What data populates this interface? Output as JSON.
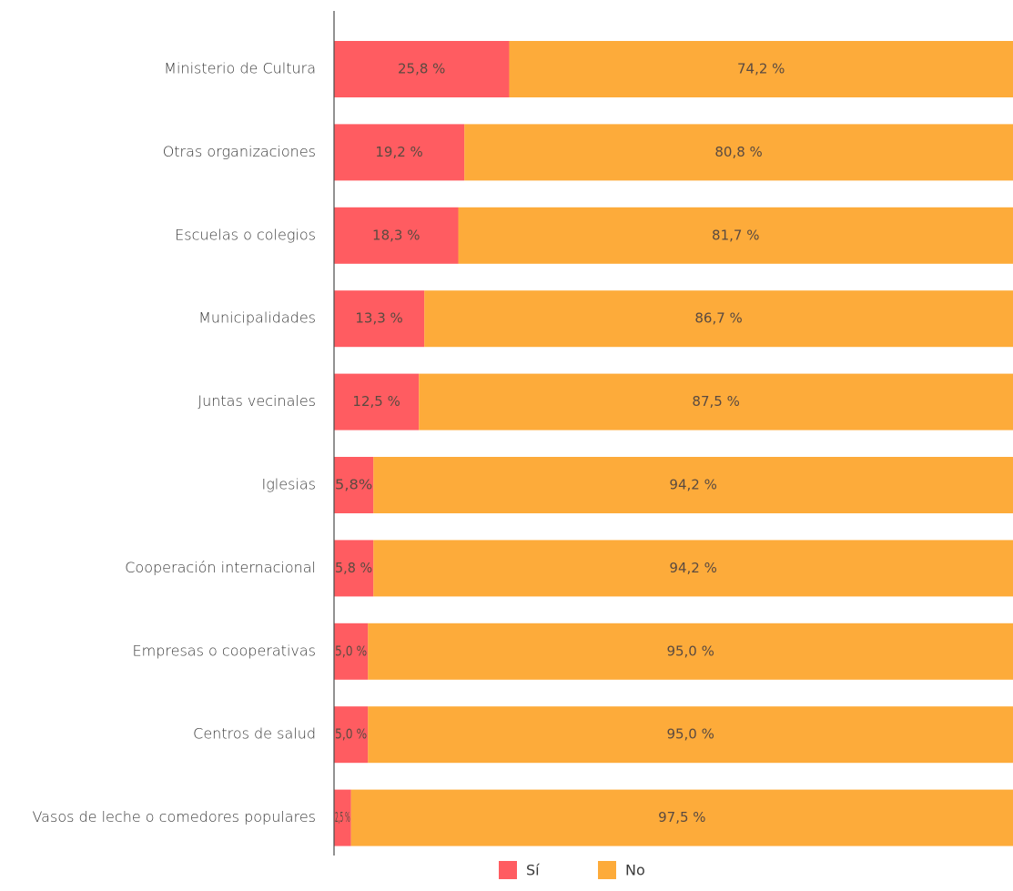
{
  "colors": {
    "si": "#ff5c61",
    "no": "#fdab3a",
    "axis": "#4a4a4a"
  },
  "chart_data": {
    "type": "bar",
    "orientation": "horizontal",
    "stacked": true,
    "title": "",
    "xlabel": "",
    "ylabel": "",
    "xlim": [
      0,
      100
    ],
    "grid": false,
    "legend_position": "bottom",
    "categories": [
      "Ministerio de Cultura",
      "Otras organizaciones",
      "Escuelas o colegios",
      "Municipalidades",
      "Juntas vecinales",
      "Iglesias",
      "Cooperación internacional",
      "Empresas o cooperativas",
      "Centros de salud",
      "Vasos de leche o comedores populares"
    ],
    "series": [
      {
        "name": "Sí",
        "color_key": "si",
        "values": [
          25.8,
          19.2,
          18.3,
          13.3,
          12.5,
          5.8,
          5.8,
          5.0,
          5.0,
          2.5
        ],
        "labels": [
          "25,8 %",
          "19,2 %",
          "18,3 %",
          "13,3 %",
          "12,5 %",
          "5,8%",
          "5,8 %",
          "5,0 %",
          "5,0 %",
          "2,5 %"
        ]
      },
      {
        "name": "No",
        "color_key": "no",
        "values": [
          74.2,
          80.8,
          81.7,
          86.7,
          87.5,
          94.2,
          94.2,
          95.0,
          95.0,
          97.5
        ],
        "labels": [
          "74,2 %",
          "80,8 %",
          "81,7 %",
          "86,7 %",
          "87,5 %",
          "94,2 %",
          "94,2 %",
          "95,0 %",
          "95,0 %",
          "97,5 %"
        ]
      }
    ]
  }
}
